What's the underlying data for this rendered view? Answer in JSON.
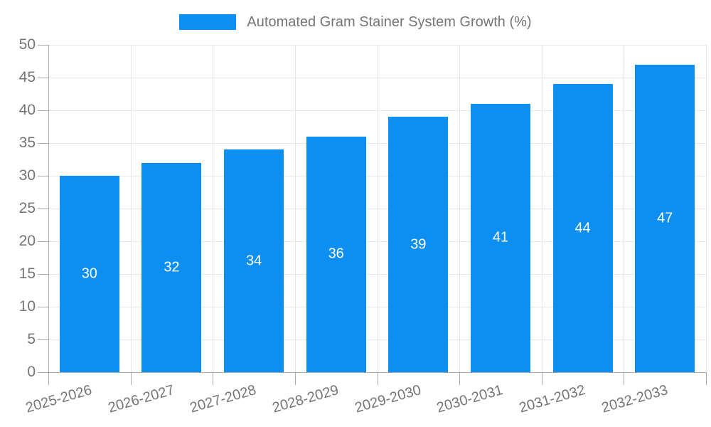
{
  "chart_data": {
    "type": "bar",
    "title": "Automated Gram Stainer System Growth (%)",
    "categories": [
      "2025-2026",
      "2026-2027",
      "2027-2028",
      "2028-2029",
      "2029-2030",
      "2030-2031",
      "2031-2032",
      "2032-2033"
    ],
    "values": [
      30,
      32,
      34,
      36,
      39,
      41,
      44,
      47
    ],
    "xlabel": "",
    "ylabel": "",
    "ylim": [
      0,
      50
    ],
    "ytick_step": 5,
    "grid": true,
    "legend_position": "top-center",
    "legend_label": "Automated Gram Stainer System Growth (%)",
    "bar_color": "#0D8FF2",
    "bar_label_color": "#FFFFFF",
    "grid_color": "#E6E6E6",
    "axis_color": "#AAAAAA",
    "tick_label_color": "#757575"
  }
}
